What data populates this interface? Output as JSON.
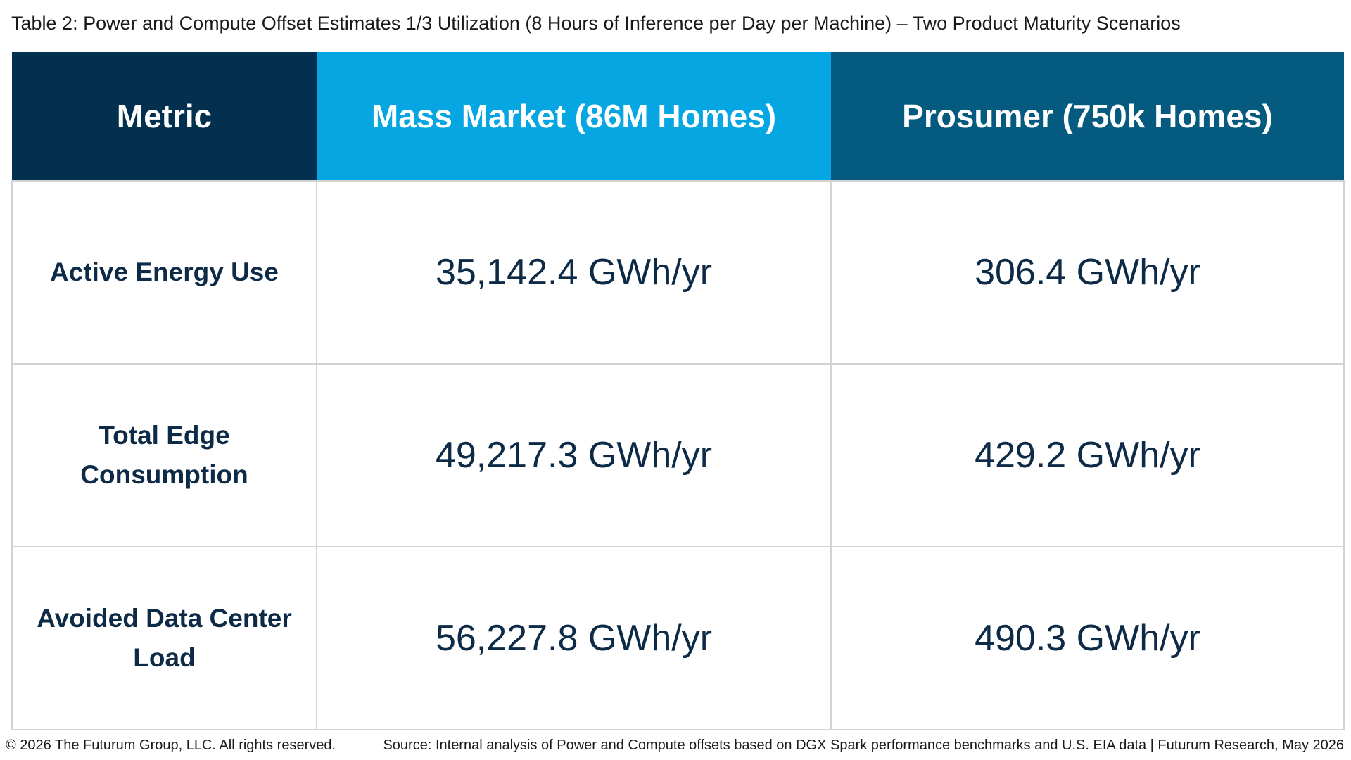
{
  "caption": "Table 2: Power and Compute Offset Estimates 1/3 Utilization (8 Hours of Inference per Day per Machine) – Two Product Maturity Scenarios",
  "table": {
    "headers": [
      "Metric",
      "Mass Market (86M Homes)",
      "Prosumer (750k Homes)"
    ],
    "rows": [
      {
        "metric": "Active Energy Use",
        "mass_market": "35,142.4 GWh/yr",
        "prosumer": "306.4 GWh/yr"
      },
      {
        "metric": "Total Edge Consumption",
        "mass_market": "49,217.3 GWh/yr",
        "prosumer": "429.2 GWh/yr"
      },
      {
        "metric": "Avoided Data Center Load",
        "mass_market": "56,227.8 GWh/yr",
        "prosumer": "490.3 GWh/yr"
      }
    ]
  },
  "footer": {
    "copyright": "© 2026 The Futurum Group, LLC. All rights reserved.",
    "source": "Source: Internal analysis of Power and Compute offsets based on DGX Spark performance benchmarks and U.S. EIA data | Futurum Research, May 2026"
  },
  "colors": {
    "metric_header": "#04304f",
    "mass_market_header": "#05a6e2",
    "prosumer_header": "#055a80",
    "text": "#0d2a47",
    "grid": "#d3d3d3"
  }
}
